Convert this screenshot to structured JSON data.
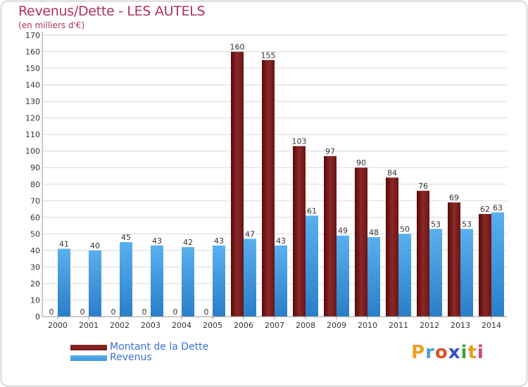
{
  "header": {
    "title": "Revenus/Dette - LES AUTELS",
    "subtitle": "(en milliers d'€)"
  },
  "colors": {
    "dette": "#7a1a1a",
    "revenus": "#3d97e0",
    "grid": "#d9d9d9",
    "axis_text": "#333333"
  },
  "legend": {
    "dette_label": "Montant de la Dette",
    "revenus_label": "Revenus"
  },
  "logo": {
    "letters": [
      "P",
      "r",
      "o",
      "x",
      "i",
      "t",
      "i"
    ],
    "colors": [
      "#f0a020",
      "#4aa0e0",
      "#e05020",
      "#3050c0",
      "#40a040",
      "#e0a020",
      "#d04080"
    ]
  },
  "chart_data": {
    "type": "bar",
    "title": "Revenus/Dette - LES AUTELS",
    "ylabel": "(en milliers d'€)",
    "xlabel": "",
    "ylim": [
      0,
      170
    ],
    "yticks": [
      0,
      10,
      20,
      30,
      40,
      50,
      60,
      70,
      80,
      90,
      100,
      110,
      120,
      130,
      140,
      150,
      160,
      170
    ],
    "categories": [
      "2000",
      "2001",
      "2002",
      "2003",
      "2004",
      "2005",
      "2006",
      "2007",
      "2008",
      "2009",
      "2010",
      "2011",
      "2012",
      "2013",
      "2014"
    ],
    "series": [
      {
        "name": "Montant de la Dette",
        "values": [
          0,
          0,
          0,
          0,
          0,
          0,
          160,
          155,
          103,
          97,
          90,
          84,
          76,
          69,
          62
        ]
      },
      {
        "name": "Revenus",
        "values": [
          41,
          40,
          45,
          43,
          42,
          43,
          47,
          43,
          61,
          49,
          48,
          50,
          53,
          53,
          63
        ]
      }
    ],
    "grid": true,
    "legend_position": "bottom-left"
  }
}
